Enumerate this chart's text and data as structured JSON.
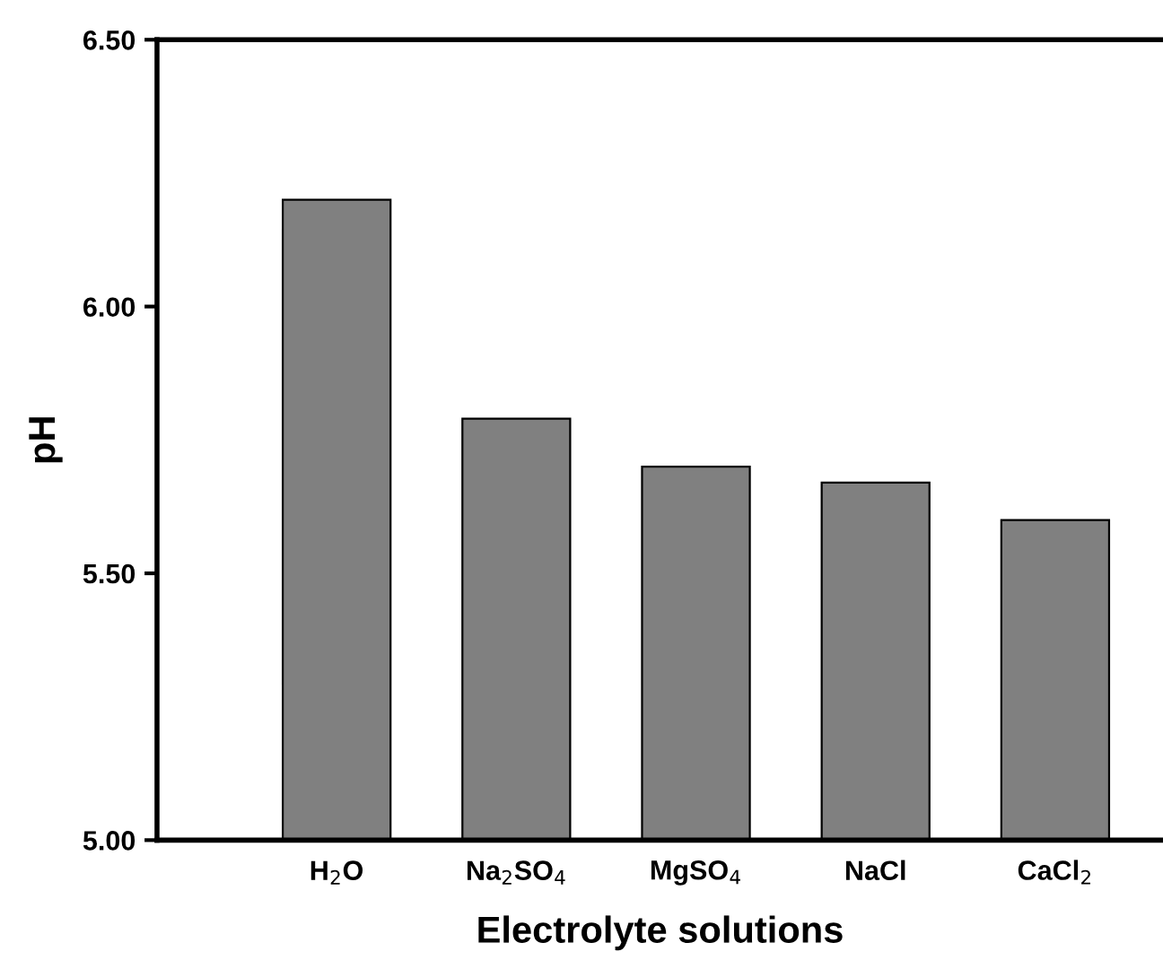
{
  "chart_data": {
    "type": "bar",
    "xlabel": "Electrolyte solutions",
    "ylabel": "pH",
    "categories": [
      "H$_{2}$O",
      "Na$_{2}$SO$_{4}$",
      "MgSO$_{4}$",
      "NaCl",
      "CaCl$_{2}$"
    ],
    "values": [
      6.2,
      5.79,
      5.7,
      5.67,
      5.6
    ],
    "color": "#808080",
    "ylim": [
      5.0,
      6.5
    ],
    "yticks": [
      {
        "value": 5.0,
        "label": "5.00"
      },
      {
        "value": 5.5,
        "label": "5.50"
      },
      {
        "value": 6.0,
        "label": "6.00"
      },
      {
        "value": 6.5,
        "label": "6.50"
      }
    ],
    "grid": false,
    "legend": false
  }
}
